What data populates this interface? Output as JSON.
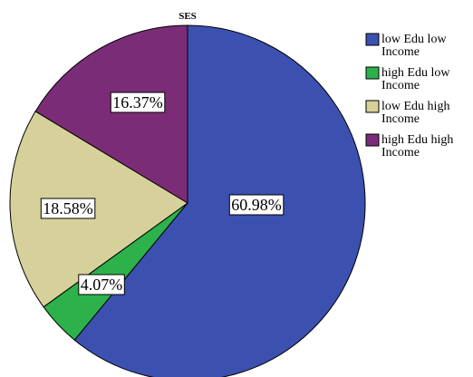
{
  "chart_data": {
    "type": "pie",
    "title": "SES",
    "slices": [
      {
        "name": "low Edu low Income",
        "legend_lines": [
          "low Edu low",
          "Income"
        ],
        "value": 60.98,
        "label": "60.98%",
        "color": "#3C50B0"
      },
      {
        "name": "high Edu low Income",
        "legend_lines": [
          "high Edu low",
          "Income"
        ],
        "value": 4.07,
        "label": "4.07%",
        "color": "#2DB24B"
      },
      {
        "name": "low Edu high Income",
        "legend_lines": [
          "low Edu high",
          "Income"
        ],
        "value": 18.58,
        "label": "18.58%",
        "color": "#D6D19A"
      },
      {
        "name": "high Edu high Income",
        "legend_lines": [
          "high Edu high",
          "Income"
        ],
        "value": 16.37,
        "label": "16.37%",
        "color": "#7B2C77"
      }
    ],
    "start_angle_deg": 0,
    "direction": "clockwise",
    "legend_position": "top-right"
  }
}
